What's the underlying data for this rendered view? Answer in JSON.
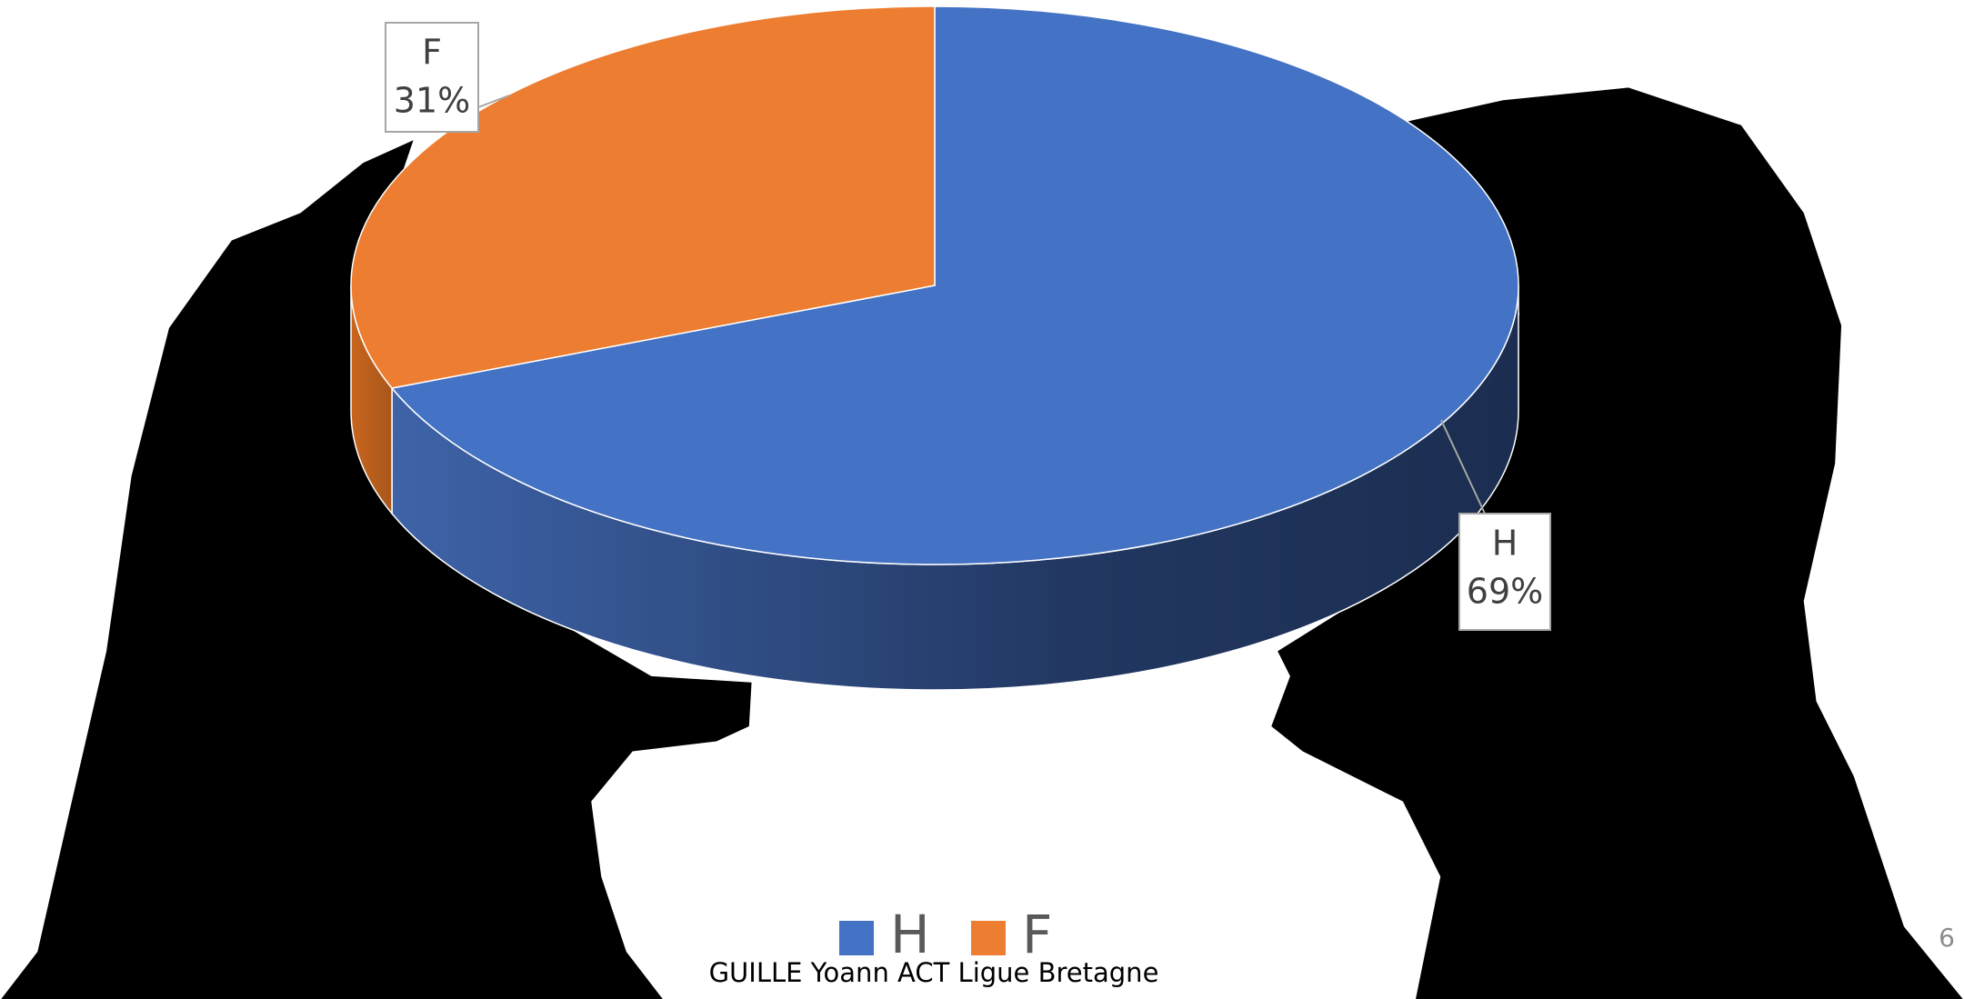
{
  "chart_data": {
    "type": "pie",
    "categories": [
      "H",
      "F"
    ],
    "values": [
      69,
      31
    ],
    "value_labels": [
      "69%",
      "31%"
    ],
    "colors": [
      "#4472c4",
      "#ed7d31"
    ],
    "legend": "bottom"
  },
  "footer": "GUILLE Yoann ACT Ligue Bretagne",
  "slide_number": "6"
}
